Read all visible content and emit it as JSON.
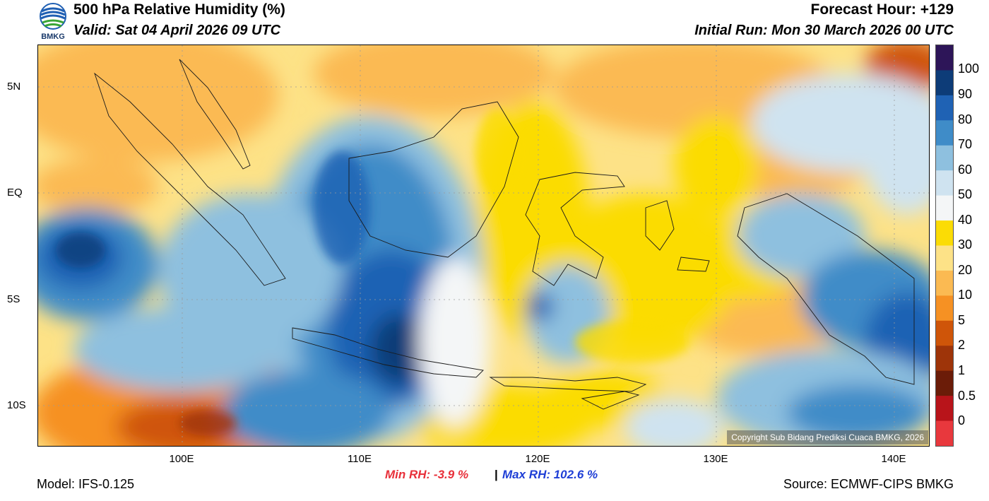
{
  "header": {
    "title": "500 hPa Relative Humidity (%)",
    "valid": "Valid: Sat 04 April 2026 09 UTC",
    "forecast_hour": "Forecast Hour: +129",
    "initial_run": "Initial Run: Mon 30 March 2026 00 UTC"
  },
  "logo": {
    "text": "BMKG",
    "colors": {
      "blue": "#1f5fb3",
      "green": "#3aa537"
    }
  },
  "axes": {
    "lat_labels": [
      "5N",
      "EQ",
      "5S",
      "10S"
    ],
    "lon_labels": [
      "100E",
      "110E",
      "120E",
      "130E",
      "140E"
    ]
  },
  "colorbar": {
    "labels": [
      "100",
      "90",
      "80",
      "70",
      "60",
      "50",
      "40",
      "30",
      "20",
      "10",
      "5",
      "2",
      "1",
      "0.5",
      "0"
    ],
    "colors": [
      "#2d1558",
      "#0d3c78",
      "#1f62b4",
      "#3f8cc8",
      "#8ec0df",
      "#cfe3f0",
      "#f4f6f7",
      "#fbdc05",
      "#fde287",
      "#fbba52",
      "#f69123",
      "#cf5509",
      "#9e3409",
      "#6b1c08",
      "#b8141a",
      "#e8383d"
    ]
  },
  "map": {
    "copyright": "Copyright Sub Bidang Prediksi Cuaca BMKG, 2026",
    "colors": {
      "ocean_base": "#fde287"
    }
  },
  "stats": {
    "min_rh": "Min RH:  -3.9 %",
    "separator": "|",
    "max_rh": "Max RH: 102.6 %"
  },
  "footer": {
    "model": "Model: IFS-0.125",
    "source": "Source: ECMWF-CIPS BMKG"
  }
}
